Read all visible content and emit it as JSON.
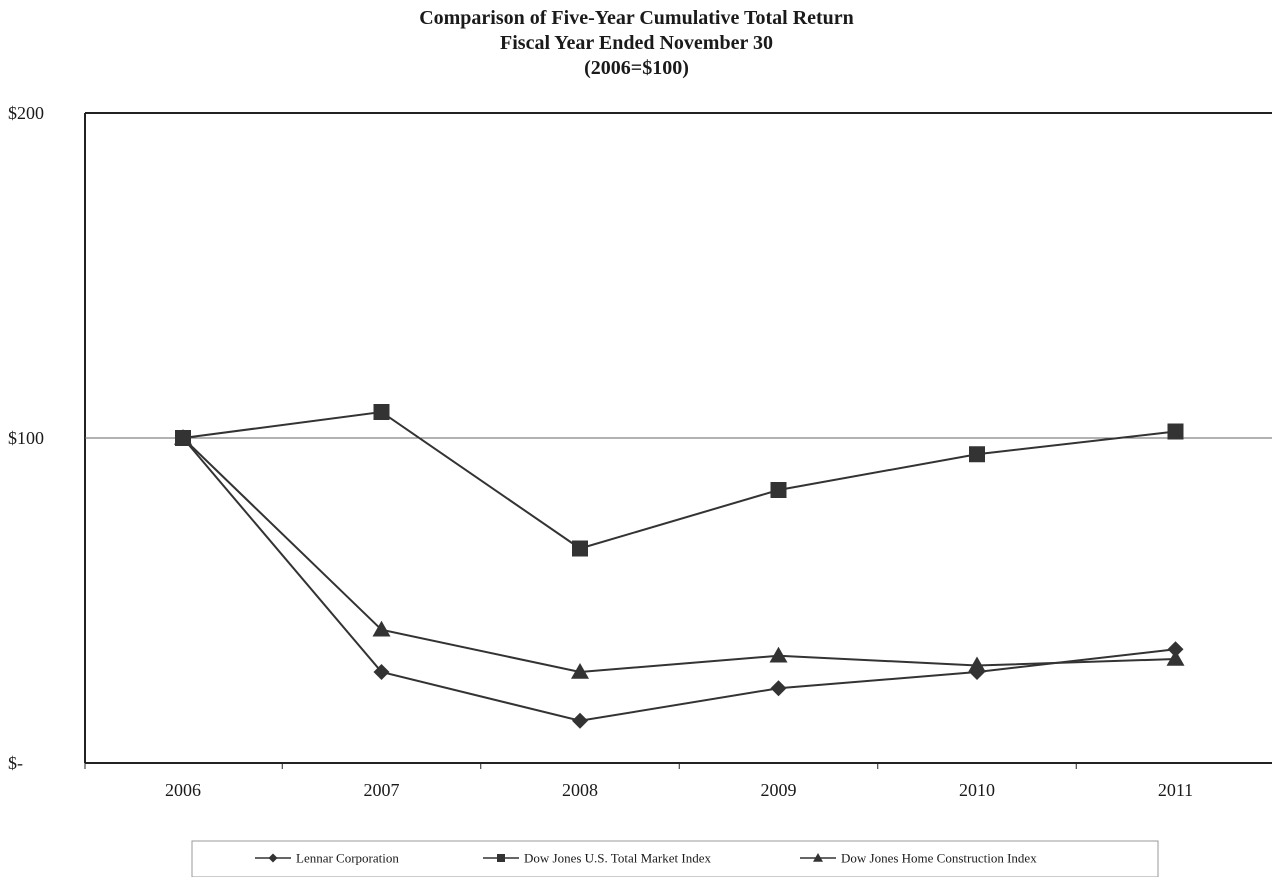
{
  "chart_data": {
    "type": "line",
    "title": "Comparison of Five-Year Cumulative Total Return",
    "subtitle": "Fiscal Year Ended November 30",
    "subtitle2": "(2006=$100)",
    "x": [
      "2006",
      "2007",
      "2008",
      "2009",
      "2010",
      "2011"
    ],
    "ylim": [
      0,
      200
    ],
    "y_ticks": [
      {
        "value": 200,
        "label": "$200"
      },
      {
        "value": 100,
        "label": "$100"
      },
      {
        "value": 0,
        "label": "$-"
      }
    ],
    "grid": "horizontal line at $100 only",
    "legend_position": "bottom",
    "series": [
      {
        "name": "Lennar Corporation",
        "marker": "diamond",
        "color": "#333333",
        "values": [
          100,
          28,
          13,
          23,
          28,
          35
        ]
      },
      {
        "name": "Dow Jones U.S. Total Market Index",
        "marker": "square",
        "color": "#333333",
        "values": [
          100,
          108,
          66,
          84,
          95,
          102
        ]
      },
      {
        "name": "Dow Jones Home Construction Index",
        "marker": "triangle",
        "color": "#333333",
        "values": [
          100,
          41,
          28,
          33,
          30,
          32
        ]
      }
    ]
  }
}
